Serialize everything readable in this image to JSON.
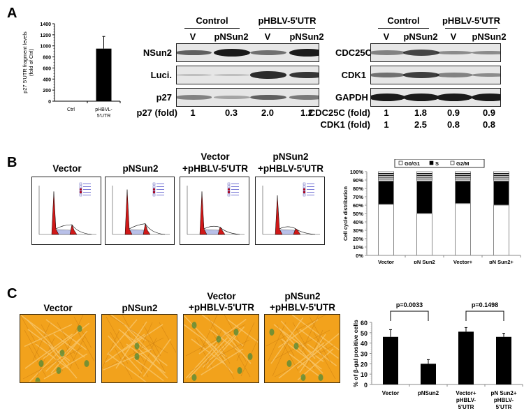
{
  "panels": {
    "A": {
      "letter": "A",
      "bar_chart": {
        "chart_data": {
          "type": "bar",
          "categories": [
            "Ctrl",
            "pHBVL-\n5'UTR"
          ],
          "category_lines": [
            [
              "Ctrl"
            ],
            [
              "pHBVL-",
              "5'UTR"
            ]
          ],
          "values": [
            0,
            950
          ],
          "errors": [
            0,
            220
          ],
          "ylabel_lines": [
            "p27 5'UTR fragment levels",
            "(fold of Ctrl)"
          ],
          "ylim": [
            0,
            1400
          ],
          "yticks": [
            0,
            200,
            400,
            600,
            800,
            1000,
            1200,
            1400
          ],
          "bar_color": "#000000"
        }
      },
      "western1": {
        "group_headers": [
          "Control",
          "pHBLV-5'UTR"
        ],
        "lane_labels": [
          "V",
          "pNSun2",
          "V",
          "pNSun2"
        ],
        "rows": [
          {
            "label": "NSun2",
            "intensity": [
              0.6,
              1.0,
              0.5,
              1.0
            ]
          },
          {
            "label": "Luci.",
            "intensity": [
              0.05,
              0.05,
              0.9,
              0.85
            ]
          },
          {
            "label": "p27",
            "intensity": [
              0.4,
              0.2,
              0.6,
              0.45
            ]
          }
        ],
        "fold_rows": [
          {
            "label": "p27 (fold)",
            "values": [
              "1",
              "0.3",
              "2.0",
              "1.2"
            ]
          }
        ]
      },
      "western2": {
        "group_headers": [
          "Control",
          "pHBLV-5'UTR"
        ],
        "lane_labels": [
          "V",
          "pNSun2",
          "V",
          "pNSun2"
        ],
        "rows": [
          {
            "label": "CDC25C",
            "intensity": [
              0.4,
              0.75,
              0.35,
              0.35
            ]
          },
          {
            "label": "CDK1",
            "intensity": [
              0.5,
              0.8,
              0.4,
              0.35
            ]
          },
          {
            "label": "GAPDH",
            "intensity": [
              1.0,
              1.0,
              1.0,
              1.0
            ]
          }
        ],
        "fold_rows": [
          {
            "label": "CDC25C (fold)",
            "values": [
              "1",
              "1.8",
              "0.9",
              "0.9"
            ]
          },
          {
            "label": "CDK1 (fold)",
            "values": [
              "1",
              "2.5",
              "0.8",
              "0.8"
            ]
          }
        ]
      }
    },
    "B": {
      "letter": "B",
      "flow_titles": [
        [
          "Vector"
        ],
        [
          "pNSun2"
        ],
        [
          "Vector",
          "+pHBLV-5'UTR"
        ],
        [
          "pNSun2",
          "+pHBLV-5'UTR"
        ]
      ],
      "flow_colors": {
        "g1": "#d01818",
        "s": "#b8c0e8",
        "g2": "#d01818"
      },
      "stacked_chart": {
        "chart_data": {
          "type": "bar",
          "stacked": true,
          "categories": [
            "Vector",
            "pNSun2",
            "Vector+\npHBLV-\n5'UTR",
            "pNSun2+\npHBLV-\n5'UTR"
          ],
          "category_lines": [
            [
              "Vector"
            ],
            [
              "pN Sun2"
            ],
            [
              "Vector+",
              "pHBLV-",
              "5'UTR"
            ],
            [
              "pN Sun2+",
              "pHBLV-",
              "5'UTR"
            ]
          ],
          "series": [
            {
              "name": "G0/G1",
              "values": [
                61,
                50,
                62,
                60
              ]
            },
            {
              "name": "S",
              "values": [
                28,
                39,
                27,
                29
              ]
            },
            {
              "name": "G2/M",
              "values": [
                11,
                11,
                11,
                11
              ]
            }
          ],
          "ylabel": "Cell cycle distribution",
          "ylim": [
            0,
            100
          ],
          "yticks": [
            "0%",
            "10%",
            "20%",
            "30%",
            "40%",
            "50%",
            "60%",
            "70%",
            "80%",
            "90%",
            "100%"
          ],
          "legend": [
            "G0/G1",
            "S",
            "G2/M"
          ],
          "legend_position": "top"
        }
      }
    },
    "C": {
      "letter": "C",
      "image_titles": [
        [
          "Vector"
        ],
        [
          "pNSun2"
        ],
        [
          "Vector",
          "+pHBLV-5'UTR"
        ],
        [
          "pNSun2",
          "+pHBLV-5'UTR"
        ]
      ],
      "image_colors": {
        "background": "#f2a21c",
        "stain": "#4f8a3a"
      },
      "bar_chart": {
        "chart_data": {
          "type": "bar",
          "categories": [
            "Vector",
            "pNSun2",
            "Vector+\npHBLV-\n5'UTR",
            "pNSun2+\npHBLV-\n5'UTR"
          ],
          "category_lines": [
            [
              "Vector"
            ],
            [
              "pNSun2"
            ],
            [
              "Vector+",
              "pHBLV-",
              "5'UTR"
            ],
            [
              "pN Sun2+",
              "pHBLV-",
              "5'UTR"
            ]
          ],
          "values": [
            46,
            20,
            51,
            46
          ],
          "errors": [
            7,
            4,
            4,
            3.5
          ],
          "ylabel": "% of β-gal positive cells",
          "ylim": [
            0,
            60
          ],
          "yticks": [
            0,
            10,
            20,
            30,
            40,
            50,
            60
          ],
          "annotations": [
            {
              "text": "p=0.0033",
              "from": 0,
              "to": 1
            },
            {
              "text": "p=0.1498",
              "from": 2,
              "to": 3
            }
          ],
          "bar_color": "#000000"
        }
      }
    }
  }
}
